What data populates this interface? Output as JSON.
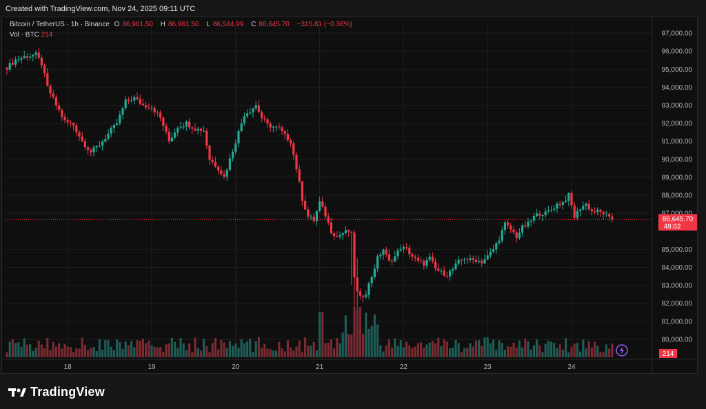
{
  "header": {
    "created": "Created with TradingView.com, Nov 24, 2025 09:11 UTC"
  },
  "legend": {
    "title": "Bitcoin / TetherUS · 1h · Binance",
    "o_label": "O",
    "o_value": "86,961.50",
    "h_label": "H",
    "h_value": "86,961.50",
    "l_label": "L",
    "l_value": "86,544.99",
    "c_label": "C",
    "c_value": "86,645.70",
    "change": "−315.81 (−0.36%)",
    "vol_label": "Vol · BTC",
    "vol_value": "214"
  },
  "price_badge": {
    "price": "86,645.70",
    "countdown": "48:02"
  },
  "volume_badge": "214",
  "brand": "TradingView",
  "colors": {
    "up": "#22ab94",
    "down": "#f23645",
    "up_vol": "#1f5c56",
    "down_vol": "#7a2a30",
    "grid": "#1f1f1f"
  },
  "chart_data": {
    "type": "candlestick",
    "title": "Bitcoin / TetherUS · 1h · Binance",
    "ylim": [
      79500,
      97500
    ],
    "y_ticks": [
      "97,000.00",
      "96,000.00",
      "95,000.00",
      "94,000.00",
      "93,000.00",
      "92,000.00",
      "91,000.00",
      "90,000.00",
      "89,000.00",
      "88,000.00",
      "87,000.00",
      "85,000.00",
      "84,000.00",
      "83,000.00",
      "82,000.00",
      "81,000.00",
      "80,000.00"
    ],
    "y_tick_values": [
      97000,
      96000,
      95000,
      94000,
      93000,
      92000,
      91000,
      90000,
      89000,
      88000,
      87000,
      85000,
      84000,
      83000,
      82000,
      81000,
      80000
    ],
    "x_ticks": [
      "18",
      "19",
      "20",
      "21",
      "22",
      "23",
      "24"
    ],
    "x_tick_index": [
      21,
      50,
      79,
      108,
      137,
      166,
      195
    ],
    "last_price": 86645.7,
    "anchors": [
      [
        0,
        95100
      ],
      [
        3,
        95500
      ],
      [
        6,
        95700
      ],
      [
        10,
        95800
      ],
      [
        12,
        95300
      ],
      [
        14,
        94000
      ],
      [
        17,
        93000
      ],
      [
        20,
        92100
      ],
      [
        23,
        91900
      ],
      [
        26,
        91000
      ],
      [
        29,
        90400
      ],
      [
        32,
        90800
      ],
      [
        35,
        91400
      ],
      [
        38,
        92000
      ],
      [
        41,
        93200
      ],
      [
        44,
        93400
      ],
      [
        47,
        93000
      ],
      [
        50,
        92900
      ],
      [
        53,
        92300
      ],
      [
        56,
        91000
      ],
      [
        59,
        91800
      ],
      [
        62,
        92000
      ],
      [
        65,
        91700
      ],
      [
        68,
        91600
      ],
      [
        70,
        90000
      ],
      [
        73,
        89500
      ],
      [
        75,
        89000
      ],
      [
        78,
        90500
      ],
      [
        80,
        91500
      ],
      [
        82,
        92500
      ],
      [
        84,
        92700
      ],
      [
        86,
        93000
      ],
      [
        88,
        92300
      ],
      [
        90,
        91900
      ],
      [
        92,
        91800
      ],
      [
        94,
        91700
      ],
      [
        96,
        91300
      ],
      [
        98,
        91000
      ],
      [
        100,
        89500
      ],
      [
        102,
        87800
      ],
      [
        104,
        86800
      ],
      [
        106,
        86600
      ],
      [
        108,
        87600
      ],
      [
        110,
        86900
      ],
      [
        112,
        86000
      ],
      [
        114,
        85700
      ],
      [
        116,
        85900
      ],
      [
        118,
        86000
      ],
      [
        119,
        85800
      ],
      [
        120,
        83500
      ],
      [
        121,
        82600
      ],
      [
        122,
        82300
      ],
      [
        124,
        82600
      ],
      [
        126,
        83500
      ],
      [
        128,
        84500
      ],
      [
        130,
        85000
      ],
      [
        132,
        84300
      ],
      [
        134,
        84600
      ],
      [
        136,
        85100
      ],
      [
        138,
        85000
      ],
      [
        140,
        84600
      ],
      [
        142,
        84300
      ],
      [
        144,
        84200
      ],
      [
        146,
        84500
      ],
      [
        148,
        83900
      ],
      [
        150,
        83700
      ],
      [
        152,
        83600
      ],
      [
        154,
        83900
      ],
      [
        156,
        84300
      ],
      [
        158,
        84500
      ],
      [
        160,
        84400
      ],
      [
        162,
        84400
      ],
      [
        164,
        84300
      ],
      [
        166,
        84600
      ],
      [
        168,
        85000
      ],
      [
        170,
        85600
      ],
      [
        172,
        86400
      ],
      [
        174,
        86100
      ],
      [
        176,
        85700
      ],
      [
        178,
        86200
      ],
      [
        180,
        86400
      ],
      [
        182,
        86800
      ],
      [
        184,
        87000
      ],
      [
        186,
        87000
      ],
      [
        188,
        87200
      ],
      [
        190,
        87500
      ],
      [
        192,
        87600
      ],
      [
        194,
        88000
      ],
      [
        196,
        86800
      ],
      [
        198,
        87300
      ],
      [
        200,
        87500
      ],
      [
        202,
        87100
      ],
      [
        204,
        87100
      ],
      [
        206,
        87000
      ],
      [
        208,
        86700
      ]
    ],
    "volume_max": 2000,
    "volume_note": "volume bars scaled to max"
  }
}
